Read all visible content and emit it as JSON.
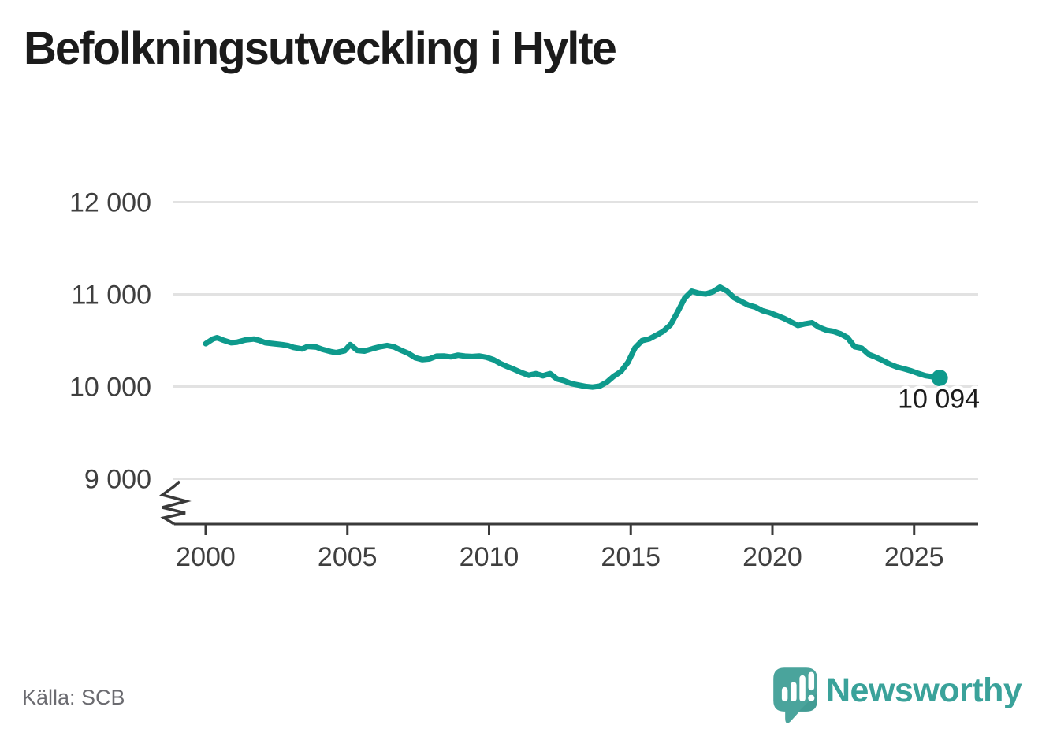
{
  "title": "Befolkningsutveckling i Hylte",
  "source_note": "Källa: SCB",
  "branding": {
    "logo_text": "Newsworthy",
    "logo_icon": "newsworthy-speech-bubble-chart-icon"
  },
  "colors": {
    "background": "#ffffff",
    "title_text": "#1b1b1b",
    "line": "#0e9a8c",
    "grid": "#e2e2e2",
    "axis": "#3a3a3a",
    "tick_label": "#3f3f3f",
    "end_label_text": "#1c1c1c",
    "end_label_halo": "#ffffff",
    "source_text": "#6b6b70",
    "logo_teal": "#4aa49c",
    "logo_shade_teal": "#3d968e",
    "logo_text_teal": "#3aa29a"
  },
  "chart_data": {
    "type": "line",
    "title": "Befolkningsutveckling i Hylte",
    "xlabel": "",
    "ylabel": "",
    "grid": "horizontal",
    "legend_position": "none",
    "axis_break_symbol": true,
    "x_ticks": [
      2000,
      2005,
      2010,
      2015,
      2020,
      2025
    ],
    "y_ticks": [
      9000,
      10000,
      11000,
      12000
    ],
    "y_tick_labels": [
      "9 000",
      "10 000",
      "11 000",
      "12 000"
    ],
    "xlim": [
      1998.9,
      2027.2
    ],
    "ylim": [
      9000,
      12000
    ],
    "end_point": {
      "year": 2025.9,
      "value": 10094,
      "label": "10 094"
    },
    "series": [
      {
        "name": "population",
        "color": "#0e9a8c",
        "points": [
          [
            2000.0,
            10465
          ],
          [
            2000.25,
            10515
          ],
          [
            2000.4,
            10530
          ],
          [
            2000.6,
            10505
          ],
          [
            2000.9,
            10475
          ],
          [
            2001.1,
            10480
          ],
          [
            2001.4,
            10505
          ],
          [
            2001.7,
            10515
          ],
          [
            2001.9,
            10500
          ],
          [
            2002.1,
            10475
          ],
          [
            2002.4,
            10465
          ],
          [
            2002.7,
            10455
          ],
          [
            2002.9,
            10445
          ],
          [
            2003.1,
            10425
          ],
          [
            2003.4,
            10408
          ],
          [
            2003.6,
            10435
          ],
          [
            2003.9,
            10428
          ],
          [
            2004.1,
            10405
          ],
          [
            2004.4,
            10380
          ],
          [
            2004.6,
            10368
          ],
          [
            2004.9,
            10388
          ],
          [
            2005.1,
            10455
          ],
          [
            2005.35,
            10392
          ],
          [
            2005.6,
            10385
          ],
          [
            2005.9,
            10412
          ],
          [
            2006.15,
            10432
          ],
          [
            2006.4,
            10445
          ],
          [
            2006.65,
            10430
          ],
          [
            2006.9,
            10392
          ],
          [
            2007.15,
            10360
          ],
          [
            2007.4,
            10312
          ],
          [
            2007.65,
            10292
          ],
          [
            2007.9,
            10300
          ],
          [
            2008.15,
            10330
          ],
          [
            2008.4,
            10332
          ],
          [
            2008.65,
            10322
          ],
          [
            2008.9,
            10340
          ],
          [
            2009.15,
            10330
          ],
          [
            2009.4,
            10326
          ],
          [
            2009.65,
            10332
          ],
          [
            2009.9,
            10318
          ],
          [
            2010.15,
            10292
          ],
          [
            2010.4,
            10250
          ],
          [
            2010.65,
            10215
          ],
          [
            2010.9,
            10185
          ],
          [
            2011.15,
            10150
          ],
          [
            2011.4,
            10122
          ],
          [
            2011.65,
            10140
          ],
          [
            2011.9,
            10116
          ],
          [
            2012.15,
            10140
          ],
          [
            2012.4,
            10082
          ],
          [
            2012.65,
            10062
          ],
          [
            2012.9,
            10032
          ],
          [
            2013.15,
            10016
          ],
          [
            2013.4,
            10002
          ],
          [
            2013.65,
            9994
          ],
          [
            2013.9,
            10004
          ],
          [
            2014.15,
            10046
          ],
          [
            2014.4,
            10112
          ],
          [
            2014.65,
            10162
          ],
          [
            2014.9,
            10262
          ],
          [
            2015.15,
            10420
          ],
          [
            2015.4,
            10498
          ],
          [
            2015.65,
            10516
          ],
          [
            2015.9,
            10556
          ],
          [
            2016.15,
            10600
          ],
          [
            2016.4,
            10668
          ],
          [
            2016.65,
            10808
          ],
          [
            2016.9,
            10958
          ],
          [
            2017.15,
            11034
          ],
          [
            2017.4,
            11012
          ],
          [
            2017.65,
            11004
          ],
          [
            2017.9,
            11028
          ],
          [
            2018.15,
            11078
          ],
          [
            2018.4,
            11034
          ],
          [
            2018.65,
            10962
          ],
          [
            2018.9,
            10922
          ],
          [
            2019.15,
            10884
          ],
          [
            2019.4,
            10862
          ],
          [
            2019.65,
            10822
          ],
          [
            2019.9,
            10802
          ],
          [
            2020.15,
            10772
          ],
          [
            2020.4,
            10740
          ],
          [
            2020.65,
            10702
          ],
          [
            2020.9,
            10662
          ],
          [
            2021.15,
            10680
          ],
          [
            2021.4,
            10692
          ],
          [
            2021.65,
            10642
          ],
          [
            2021.9,
            10612
          ],
          [
            2022.15,
            10598
          ],
          [
            2022.4,
            10572
          ],
          [
            2022.65,
            10530
          ],
          [
            2022.9,
            10432
          ],
          [
            2023.15,
            10416
          ],
          [
            2023.4,
            10348
          ],
          [
            2023.65,
            10318
          ],
          [
            2023.9,
            10282
          ],
          [
            2024.15,
            10242
          ],
          [
            2024.4,
            10212
          ],
          [
            2024.65,
            10192
          ],
          [
            2024.9,
            10170
          ],
          [
            2025.15,
            10142
          ],
          [
            2025.4,
            10118
          ],
          [
            2025.65,
            10106
          ],
          [
            2025.9,
            10094
          ]
        ]
      }
    ]
  }
}
